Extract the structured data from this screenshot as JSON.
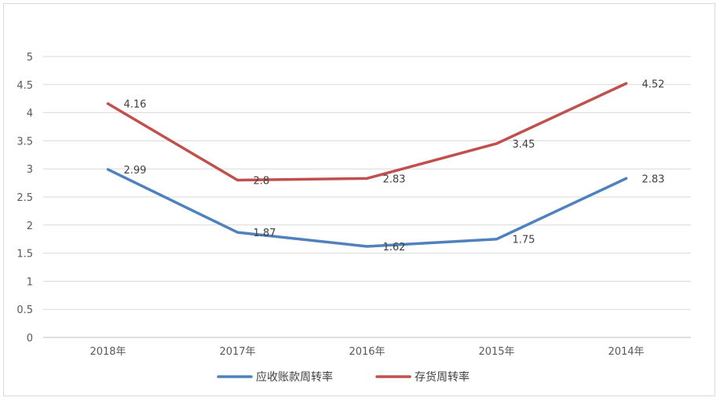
{
  "chart_data": {
    "type": "line",
    "title": "",
    "xlabel": "",
    "ylabel": "",
    "categories": [
      "2018年",
      "2017年",
      "2016年",
      "2015年",
      "2014年"
    ],
    "ylim": [
      0,
      5
    ],
    "yticks": [
      "0",
      "0.5",
      "1",
      "1.5",
      "2",
      "2.5",
      "3",
      "3.5",
      "4",
      "4.5",
      "5"
    ],
    "grid": true,
    "legend_position": "bottom",
    "series": [
      {
        "name": "应收账款周转率",
        "color": "#4F81BD",
        "values": [
          2.99,
          1.87,
          1.62,
          1.75,
          2.83
        ],
        "labels": [
          "2.99",
          "1.87",
          "1.62",
          "1.75",
          "2.83"
        ]
      },
      {
        "name": "存货周转率",
        "color": "#C0504D",
        "values": [
          4.16,
          2.8,
          2.83,
          3.45,
          4.52
        ],
        "labels": [
          "4.16",
          "2.8",
          "2.83",
          "3.45",
          "4.52"
        ]
      }
    ]
  }
}
